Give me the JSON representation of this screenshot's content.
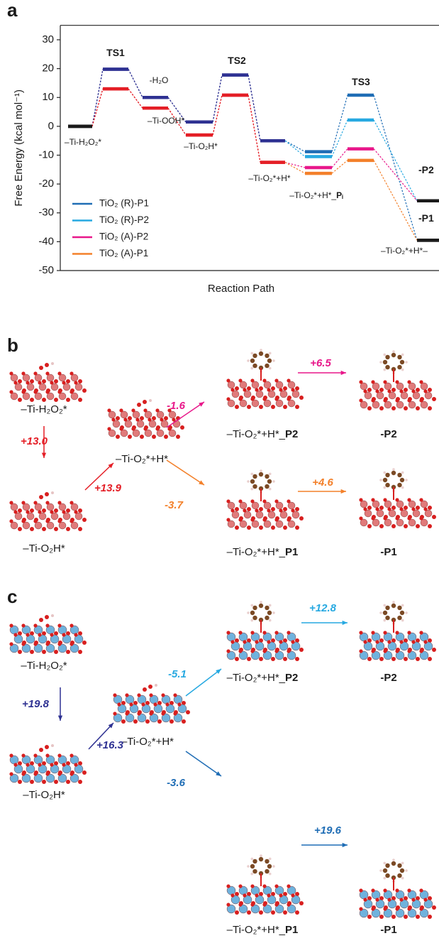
{
  "chart_data": {
    "type": "energy-levels",
    "panel_label": "a",
    "y_label": "Free Energy (kcal mol⁻¹)",
    "x_label": "Reaction Path",
    "categories": [
      null,
      null,
      null,
      null,
      null,
      null,
      null,
      null,
      null
    ],
    "ylim": [
      -50,
      35
    ],
    "yticks": [
      -50,
      -40,
      -30,
      -20,
      -10,
      0,
      10,
      20,
      30
    ],
    "series": [
      {
        "name": "TiO₂ (R)-P1",
        "color": "#1f6db5",
        "values": [
          0,
          19.8,
          10,
          1.5,
          17.8,
          -5,
          -8.8,
          10.8,
          -39.5
        ],
        "colors": [
          "#1a1a1a",
          "#2e3192",
          "#2e3192",
          "#2e3192",
          "#2e3192",
          "#2e3192",
          "#1f6db5",
          "#1f6db5",
          "#1a1a1a"
        ]
      },
      {
        "name": "TiO₂ (R)-P2",
        "color": "#27a9e1",
        "values": [
          0,
          19.8,
          10,
          1.5,
          17.8,
          -5,
          -10.5,
          2.2,
          -25.8
        ],
        "colors": [
          "#1a1a1a",
          "#2e3192",
          "#2e3192",
          "#2e3192",
          "#2e3192",
          "#2e3192",
          "#27a9e1",
          "#27a9e1",
          "#1a1a1a"
        ]
      },
      {
        "name": "TiO₂ (A)-P2",
        "color": "#e8178a",
        "values": [
          0,
          13,
          6.3,
          -3,
          10.8,
          -12.5,
          -14.3,
          -7.8,
          -25.8
        ],
        "colors": [
          "#1a1a1a",
          "#e41e26",
          "#e41e26",
          "#e41e26",
          "#e41e26",
          "#e41e26",
          "#e8178a",
          "#e8178a",
          "#1a1a1a"
        ]
      },
      {
        "name": "TiO₂ (A)-P1",
        "color": "#f3802a",
        "values": [
          0,
          13,
          6.3,
          -3,
          10.8,
          -12.5,
          -16.3,
          -11.8,
          -39.5
        ],
        "colors": [
          "#1a1a1a",
          "#e41e26",
          "#e41e26",
          "#e41e26",
          "#e41e26",
          "#e41e26",
          "#f3802a",
          "#f3802a",
          "#1a1a1a"
        ]
      }
    ],
    "annotations": [
      {
        "bold": "TS1"
      },
      {
        "bold": "TS2"
      },
      {
        "bold": "TS3"
      },
      {
        "bold": "-P2"
      },
      {
        "bold": "-P1"
      },
      {
        "text": "-H₂O"
      },
      {
        "text": "–Ti-H₂O₂*"
      },
      {
        "text": "–Ti-OOH*"
      },
      {
        "text": "–Ti-O₂H*"
      },
      {
        "text": "–Ti-O₂*+H*"
      },
      {
        "text": "–Ti-O₂*+H*_",
        "bold": "Pᵢ"
      },
      {
        "text": "–Ti-O₂*+H*–"
      }
    ]
  },
  "panel_b": {
    "label": "b",
    "structures": [
      {
        "text": "–Ti-H₂O₂*"
      },
      {
        "text": "–Ti-O₂H*"
      },
      {
        "text": "–Ti-O₂*+H*"
      },
      {
        "text": "–Ti-O₂*+H*_",
        "bold": "P2"
      },
      {
        "bold": "-P2"
      },
      {
        "text": "–Ti-O₂*+H*_",
        "bold": "P1"
      },
      {
        "bold": "-P1"
      }
    ],
    "energies": [
      "+13.0",
      "+13.9",
      "-1.6",
      "-3.7",
      "+6.5",
      "+4.6"
    ],
    "colors": [
      "#e41e26",
      "#e41e26",
      "#e8178a",
      "#f3802a",
      "#e8178a",
      "#f3802a"
    ]
  },
  "panel_c": {
    "label": "c",
    "structures": [
      {
        "text": "–Ti-H₂O₂*"
      },
      {
        "text": "–Ti-O₂H*"
      },
      {
        "text": "–Ti-O₂*+H*"
      },
      {
        "text": "–Ti-O₂*+H*_",
        "bold": "P2"
      },
      {
        "bold": "-P2"
      },
      {
        "text": "–Ti-O₂*+H*_",
        "bold": "P1"
      },
      {
        "bold": "-P1"
      }
    ],
    "energies": [
      "+19.8",
      "+16.3",
      "-5.1",
      "-3.6",
      "+12.8",
      "+19.6"
    ],
    "colors": [
      "#2e3192",
      "#2e3192",
      "#27a9e1",
      "#1f6db5",
      "#27a9e1",
      "#1f6db5"
    ]
  }
}
